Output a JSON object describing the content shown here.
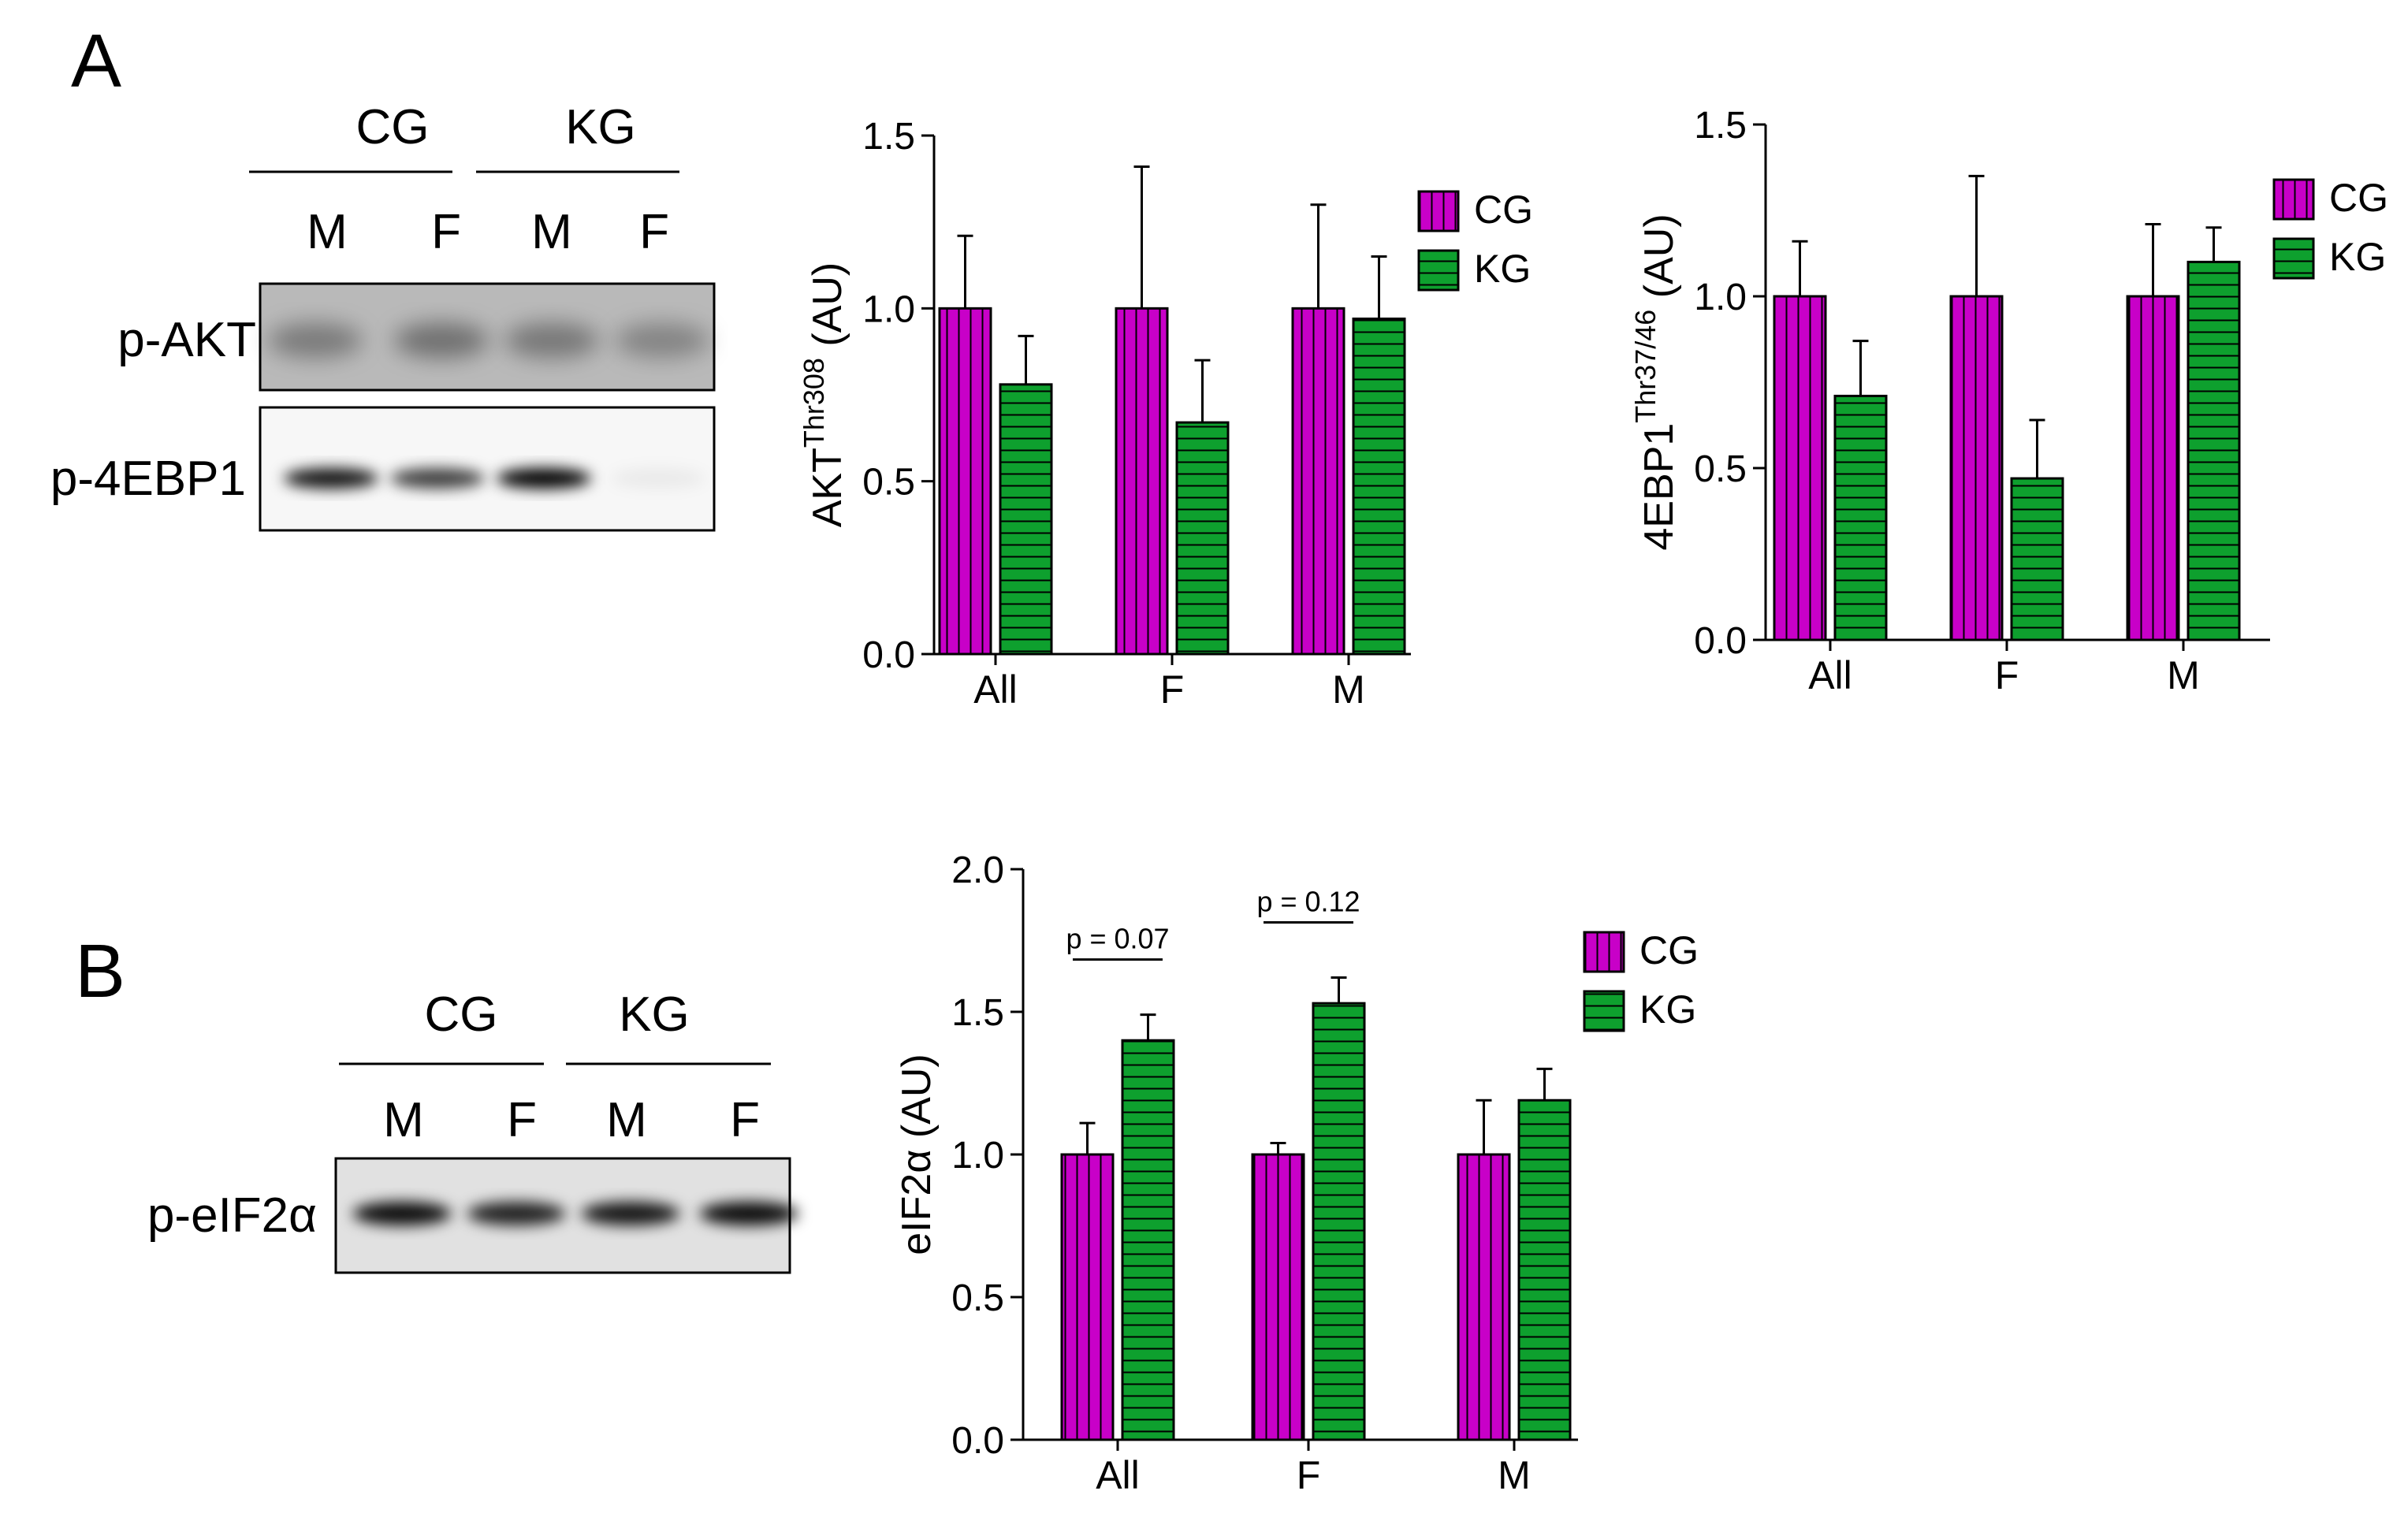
{
  "panels": {
    "A": {
      "letter": "A"
    },
    "B": {
      "letter": "B"
    }
  },
  "colors": {
    "CG": "#c800c8",
    "KG": "#0ea02e",
    "pattern_line": "#000000"
  },
  "blots": {
    "A": {
      "groups": [
        "CG",
        "KG"
      ],
      "lanes": [
        "M",
        "F",
        "M",
        "F"
      ],
      "bands": [
        {
          "label": "p-AKT",
          "intensities": [
            0.62,
            0.72,
            0.66,
            0.52
          ]
        },
        {
          "label": "p-4EBP1",
          "intensities": [
            0.92,
            0.75,
            1.0,
            0.05
          ]
        }
      ]
    },
    "B": {
      "groups": [
        "CG",
        "KG"
      ],
      "lanes": [
        "M",
        "F",
        "M",
        "F"
      ],
      "bands": [
        {
          "label": "p-eIF2α",
          "intensities": [
            0.95,
            0.85,
            0.9,
            0.95
          ]
        }
      ]
    }
  },
  "chart_data": [
    {
      "id": "akt",
      "type": "bar",
      "categories": [
        "All",
        "F",
        "M"
      ],
      "series": [
        {
          "name": "CG",
          "values": [
            1.0,
            1.0,
            1.0
          ],
          "errors": [
            0.21,
            0.41,
            0.3
          ]
        },
        {
          "name": "KG",
          "values": [
            0.78,
            0.67,
            0.97
          ],
          "errors": [
            0.14,
            0.18,
            0.18
          ]
        }
      ],
      "ylabel_main": "AKT",
      "ylabel_sup": "Thr308",
      "ylabel_unit": " (AU)",
      "ylim": [
        0,
        1.5
      ],
      "yticks": [
        "0.0",
        "0.5",
        "1.0",
        "1.5"
      ],
      "legend": "top-right",
      "annotations": []
    },
    {
      "id": "4ebp1",
      "type": "bar",
      "categories": [
        "All",
        "F",
        "M"
      ],
      "series": [
        {
          "name": "CG",
          "values": [
            1.0,
            1.0,
            1.0
          ],
          "errors": [
            0.16,
            0.35,
            0.21
          ]
        },
        {
          "name": "KG",
          "values": [
            0.71,
            0.47,
            1.1
          ],
          "errors": [
            0.16,
            0.17,
            0.1
          ]
        }
      ],
      "ylabel_main": "4EBP1",
      "ylabel_sup": "Thr37/46",
      "ylabel_unit": " (AU)",
      "ylim": [
        0,
        1.5
      ],
      "yticks": [
        "0.0",
        "0.5",
        "1.0",
        "1.5"
      ],
      "legend": "top-right",
      "annotations": []
    },
    {
      "id": "eif2a",
      "type": "bar",
      "categories": [
        "All",
        "F",
        "M"
      ],
      "series": [
        {
          "name": "CG",
          "values": [
            1.0,
            1.0,
            1.0
          ],
          "errors": [
            0.11,
            0.04,
            0.19
          ]
        },
        {
          "name": "KG",
          "values": [
            1.4,
            1.53,
            1.19
          ],
          "errors": [
            0.09,
            0.09,
            0.11
          ]
        }
      ],
      "ylabel_main": "eIF2α",
      "ylabel_sup": "",
      "ylabel_unit": " (AU)",
      "ylim": [
        0,
        2.0
      ],
      "yticks": [
        "0.0",
        "0.5",
        "1.0",
        "1.5",
        "2.0"
      ],
      "legend": "top-right",
      "annotations": [
        {
          "category": "All",
          "text": "p = 0.07"
        },
        {
          "category": "F",
          "text": "p = 0.12"
        }
      ]
    }
  ]
}
